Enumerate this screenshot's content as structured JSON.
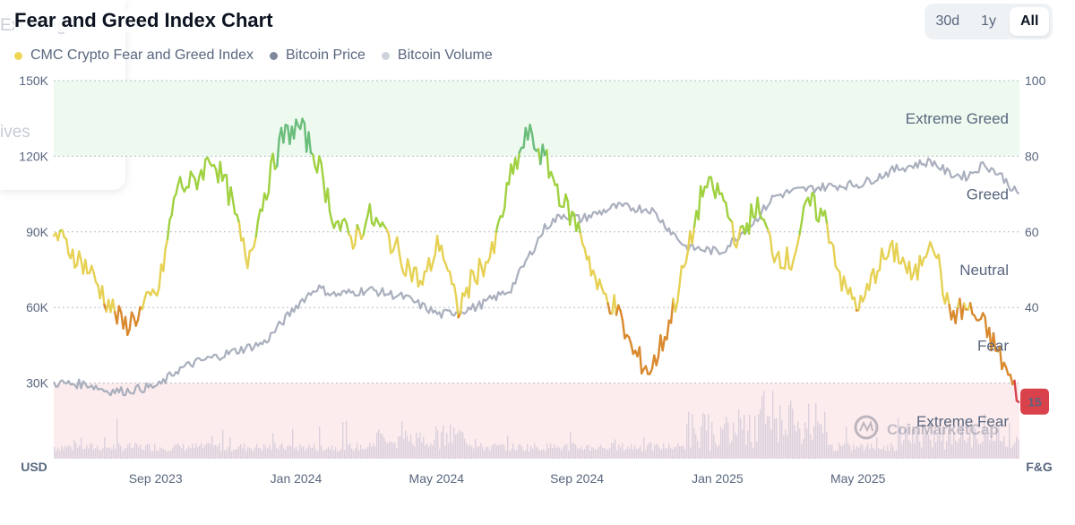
{
  "page": {
    "title": "Fear and Greed Index Chart",
    "ghost_text_top": "Exchanges",
    "ghost_text_mid": "ives"
  },
  "range_toggle": {
    "options": [
      "30d",
      "1y",
      "All"
    ],
    "selected": "All"
  },
  "watermark": {
    "text": "CoinMarketCap",
    "icon": "coinmarketcap-logo-icon"
  },
  "chart_data": {
    "type": "line",
    "legend": [
      {
        "name": "CMC Crypto Fear and Greed Index",
        "color": "#f0d656"
      },
      {
        "name": "Bitcoin Price",
        "color": "#7f889a"
      },
      {
        "name": "Bitcoin Volume",
        "color": "#cfd3dd"
      }
    ],
    "x_tick_labels": [
      "Sep 2023",
      "Jan 2024",
      "May 2024",
      "Sep 2024",
      "Jan 2025",
      "May 2025"
    ],
    "left_axis": {
      "unit": "USD",
      "ticks": [
        "150K",
        "120K",
        "90K",
        "60K",
        "30K"
      ],
      "ylim": [
        0,
        150000
      ]
    },
    "right_axis": {
      "unit": "F&G",
      "ticks": [
        "100",
        "80",
        "60",
        "40"
      ],
      "ylim": [
        0,
        100
      ]
    },
    "zones": [
      {
        "label": "Extreme Greed",
        "from": 80,
        "to": 100,
        "color": "#eefaf0"
      },
      {
        "label": "Greed",
        "from": 60,
        "to": 80
      },
      {
        "label": "Neutral",
        "from": 40,
        "to": 60
      },
      {
        "label": "Fear",
        "from": 20,
        "to": 40
      },
      {
        "label": "Extreme Fear",
        "from": 0,
        "to": 20,
        "color": "#fcecee"
      }
    ],
    "current_value_badge": {
      "value": "15",
      "color": "#d9414b"
    },
    "fear_greed_index": {
      "x_months": [
        0,
        0.5,
        1,
        1.5,
        2,
        2.5,
        3,
        3.5,
        4,
        4.5,
        5,
        5.5,
        6,
        6.5,
        7,
        7.5,
        8,
        8.5,
        9,
        9.5,
        10,
        10.5,
        11,
        11.5,
        12,
        12.5,
        13,
        13.5,
        14,
        14.5,
        15,
        15.5,
        16,
        16.5,
        17,
        17.5,
        18,
        18.5,
        19,
        19.5,
        20,
        20.5,
        21,
        21.5,
        22,
        22.5,
        23,
        23.5,
        24,
        24.5,
        25,
        25.5,
        26,
        26.5,
        27,
        27.5
      ],
      "values": [
        60,
        55,
        50,
        42,
        35,
        39,
        45,
        72,
        73,
        80,
        70,
        52,
        70,
        85,
        88,
        79,
        63,
        58,
        64,
        59,
        52,
        46,
        58,
        39,
        49,
        54,
        74,
        86,
        79,
        68,
        60,
        45,
        40,
        28,
        23,
        35,
        52,
        72,
        70,
        57,
        67,
        55,
        52,
        68,
        63,
        45,
        40,
        52,
        55,
        47,
        60,
        38,
        40,
        35,
        26,
        15
      ]
    },
    "bitcoin_price": {
      "x_months": [
        0,
        1,
        1.5,
        2,
        3,
        3.5,
        4,
        5,
        6,
        7,
        7.5,
        8,
        9,
        10,
        11,
        12,
        13,
        14,
        14.5,
        15,
        16,
        17,
        18,
        19,
        20,
        20.5,
        21,
        22,
        23,
        24,
        25,
        25.5,
        26,
        26.5,
        27,
        27.5
      ],
      "values": [
        30000,
        29500,
        27000,
        26800,
        29000,
        35000,
        38000,
        42000,
        46000,
        62000,
        68000,
        65000,
        67000,
        64000,
        57000,
        60000,
        67000,
        92000,
        97000,
        95000,
        100000,
        99000,
        84000,
        82000,
        95000,
        104000,
        106000,
        108000,
        109000,
        115000,
        118000,
        113000,
        112000,
        117000,
        112000,
        104000
      ]
    },
    "bitcoin_volume": {
      "note": "daily bars",
      "scale": "relative",
      "ylim_share": 0.3
    }
  }
}
